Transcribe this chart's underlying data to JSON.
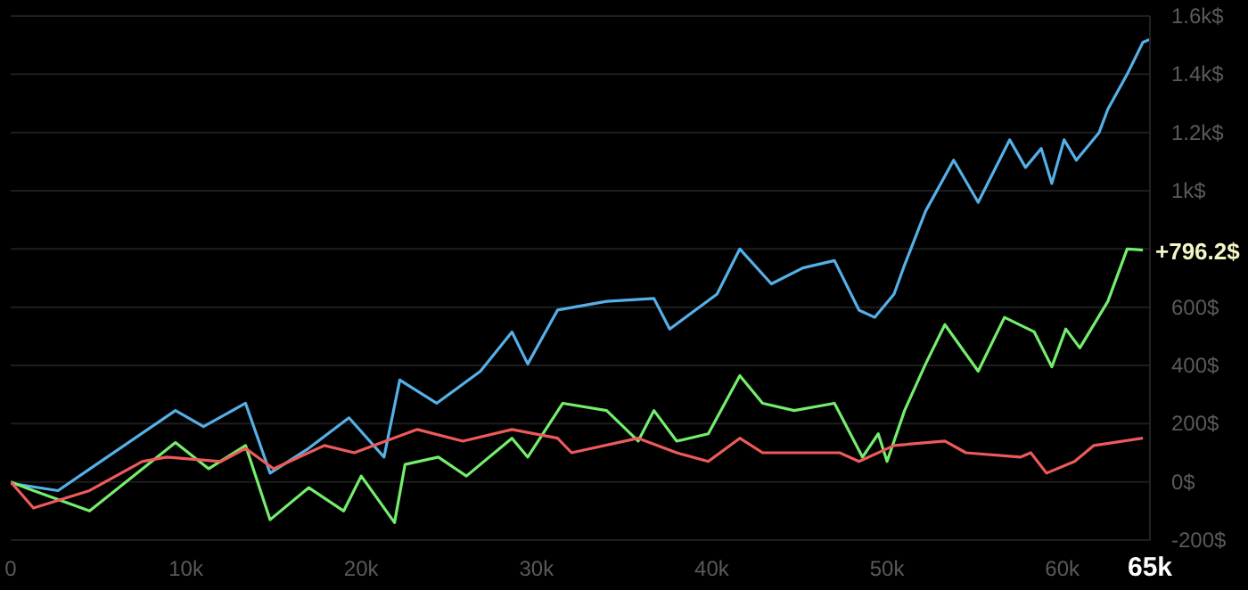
{
  "chart_data": {
    "type": "line",
    "xlim": [
      0,
      65000
    ],
    "ylim": [
      -200,
      1600
    ],
    "xticks": [
      {
        "value": 0,
        "label": "0"
      },
      {
        "value": 10000,
        "label": "10k"
      },
      {
        "value": 20000,
        "label": "20k"
      },
      {
        "value": 30000,
        "label": "30k"
      },
      {
        "value": 40000,
        "label": "40k"
      },
      {
        "value": 50000,
        "label": "50k"
      },
      {
        "value": 60000,
        "label": "60k"
      },
      {
        "value": 65000,
        "label": "65k"
      }
    ],
    "yticks": [
      {
        "value": -200,
        "label": "-200$"
      },
      {
        "value": 0,
        "label": "0$"
      },
      {
        "value": 200,
        "label": "200$"
      },
      {
        "value": 400,
        "label": "400$"
      },
      {
        "value": 600,
        "label": "600$"
      },
      {
        "value": 800,
        "label": null
      },
      {
        "value": 1000,
        "label": "1k$"
      },
      {
        "value": 1200,
        "label": "1.2k$"
      },
      {
        "value": 1400,
        "label": "1.4k$"
      },
      {
        "value": 1600,
        "label": "1.6k$"
      }
    ],
    "grid": "y",
    "marker": "none",
    "line_style": "solid",
    "annotations": [
      {
        "text": "+796.2$",
        "x": 65000,
        "y": 796.2
      }
    ],
    "series": [
      {
        "color": "#56b0e8",
        "x": [
          0,
          2700,
          5500,
          9400,
          11000,
          13400,
          14800,
          17000,
          19300,
          21300,
          22200,
          24300,
          26800,
          28600,
          29500,
          31200,
          34000,
          36700,
          37600,
          40300,
          41600,
          43400,
          45200,
          47000,
          48400,
          49300,
          50400,
          51000,
          52200,
          53800,
          55200,
          57000,
          57900,
          58800,
          59400,
          60100,
          60800,
          62100,
          62600,
          63700,
          64600,
          65000
        ],
        "values": [
          -5,
          -30,
          85,
          245,
          190,
          270,
          30,
          115,
          220,
          85,
          350,
          270,
          380,
          515,
          405,
          590,
          620,
          630,
          525,
          645,
          800,
          680,
          735,
          760,
          590,
          565,
          645,
          745,
          930,
          1105,
          960,
          1175,
          1080,
          1145,
          1025,
          1175,
          1105,
          1200,
          1280,
          1400,
          1510,
          1520
        ]
      },
      {
        "color": "#74ee6c",
        "x": [
          0,
          1300,
          4500,
          9400,
          11300,
          13400,
          14800,
          17000,
          19000,
          20000,
          21900,
          22500,
          24400,
          26000,
          28600,
          29500,
          31500,
          34000,
          35800,
          36700,
          38000,
          39800,
          41600,
          42900,
          44700,
          47000,
          48600,
          49500,
          50000,
          51000,
          52200,
          53300,
          55200,
          56700,
          58400,
          59400,
          60200,
          61000,
          62600,
          63700,
          64600
        ],
        "values": [
          0,
          -30,
          -100,
          135,
          45,
          125,
          -130,
          -20,
          -100,
          20,
          -140,
          60,
          85,
          20,
          150,
          85,
          270,
          245,
          140,
          245,
          140,
          165,
          365,
          270,
          245,
          270,
          85,
          165,
          70,
          245,
          405,
          540,
          380,
          565,
          515,
          395,
          525,
          460,
          620,
          800,
          796.2
        ]
      },
      {
        "color": "#ee5a5a",
        "x": [
          0,
          1300,
          4500,
          7500,
          8900,
          12000,
          13400,
          15000,
          17900,
          19600,
          23200,
          25800,
          28600,
          31200,
          32000,
          35800,
          38000,
          39800,
          41600,
          42900,
          47300,
          48400,
          50400,
          53300,
          54500,
          57600,
          58200,
          59100,
          60700,
          61800,
          64600
        ],
        "values": [
          0,
          -90,
          -30,
          70,
          85,
          70,
          115,
          45,
          125,
          100,
          180,
          140,
          180,
          150,
          100,
          150,
          100,
          70,
          150,
          100,
          100,
          70,
          125,
          140,
          100,
          85,
          100,
          30,
          70,
          125,
          150
        ]
      }
    ]
  }
}
